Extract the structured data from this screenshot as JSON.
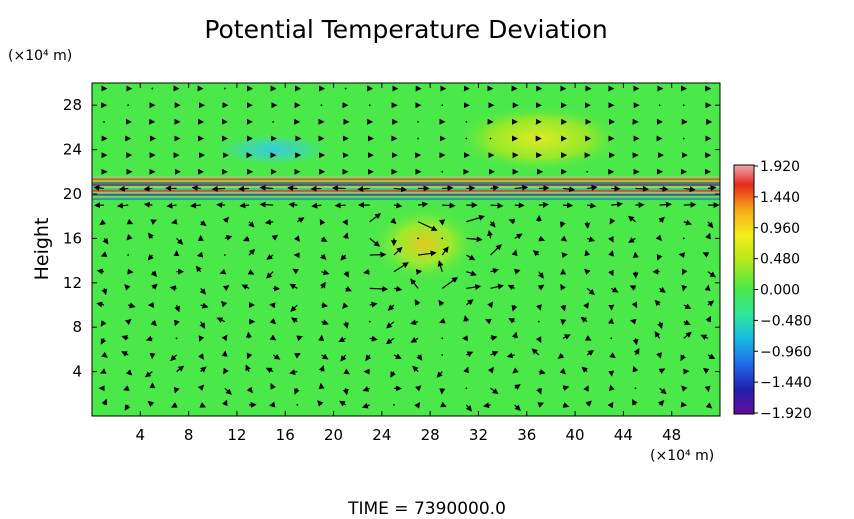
{
  "chart_data": {
    "type": "heatmap",
    "title": "Potential Temperature Deviation",
    "ylabel": "Height",
    "x_unit_label": "(×10⁴ m)",
    "y_unit_label": "(×10⁴ m)",
    "xlim": [
      0,
      52
    ],
    "ylim": [
      0,
      30
    ],
    "x_ticks": [
      4,
      8,
      12,
      16,
      20,
      24,
      28,
      32,
      36,
      40,
      44,
      48
    ],
    "y_ticks": [
      4,
      8,
      12,
      16,
      20,
      24,
      28
    ],
    "colorbar": {
      "min": -1.92,
      "max": 1.92,
      "tick_values": [
        1.92,
        1.44,
        0.96,
        0.48,
        0.0,
        -0.48,
        -0.96,
        -1.44,
        -1.92
      ],
      "tick_labels": [
        "1.920",
        "1.440",
        "0.960",
        "0.480",
        "0.000",
        "−0.480",
        "−0.960",
        "−1.440",
        "−1.920"
      ],
      "colors": [
        "#6a0a9a",
        "#2020b0",
        "#1f6be8",
        "#18b8e6",
        "#2ee89a",
        "#4be84a",
        "#b6e81c",
        "#f6ee1a",
        "#f7a81a",
        "#e8281c",
        "#f0a8b0"
      ]
    },
    "features": [
      {
        "kind": "blue-anomaly",
        "x": [
          10,
          20
        ],
        "y": [
          22.5,
          25.5
        ],
        "value": -0.45
      },
      {
        "kind": "yellow-anomaly",
        "x": [
          30,
          44
        ],
        "y": [
          22,
          28
        ],
        "value": 0.55
      },
      {
        "kind": "mixed-layer-band",
        "x": [
          0,
          52
        ],
        "y": [
          19.5,
          21.6
        ],
        "min": -1.92,
        "max": 1.92
      },
      {
        "kind": "warm-plume",
        "x": [
          23,
          32
        ],
        "y": [
          12,
          19
        ],
        "value": 0.9
      }
    ],
    "vector_field": {
      "description": "wind arrows",
      "x_spacing": 2,
      "y_spacing": 1.5
    }
  },
  "footer": {
    "time_label": "TIME  =  7390000.0"
  }
}
